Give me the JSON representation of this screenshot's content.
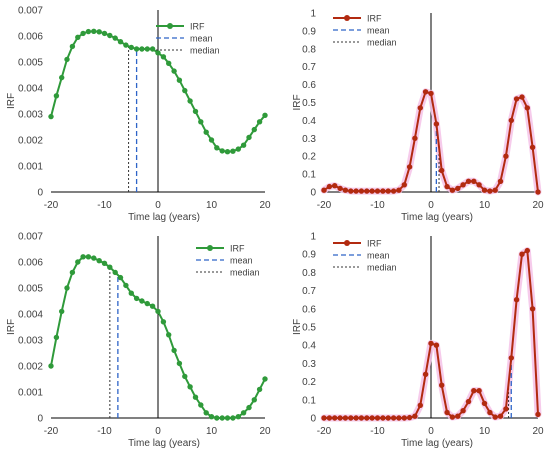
{
  "colors": {
    "green_series": "#2f9a3a",
    "red_series": "#b22a10",
    "red_glow": "#f4c2e8",
    "mean_line": "#2e64c8",
    "median_line": "#333333",
    "axis": "#000000",
    "tick_text": "#404040"
  },
  "chart_data": [
    {
      "type": "line",
      "panel": "top-left",
      "title": "",
      "xlabel": "Time lag (years)",
      "ylabel": "IRF",
      "xlim": [
        -20,
        20
      ],
      "ylim": [
        0,
        0.007
      ],
      "xticks": [
        "-20",
        "-10",
        "0",
        "10",
        "20"
      ],
      "yticks": [
        "0",
        "0.001",
        "0.002",
        "0.003",
        "0.004",
        "0.005",
        "0.006",
        "0.007"
      ],
      "legend": {
        "placement": "top-right",
        "labels": [
          "IRF",
          "mean",
          "median"
        ]
      },
      "series": [
        {
          "name": "IRF",
          "x": [
            -20,
            -19,
            -18,
            -17,
            -16,
            -15,
            -14,
            -13,
            -12,
            -11,
            -10,
            -9,
            -8,
            -7,
            -6,
            -5,
            -4,
            -3,
            -2,
            -1,
            0,
            1,
            2,
            3,
            4,
            5,
            6,
            7,
            8,
            9,
            10,
            11,
            12,
            13,
            14,
            15,
            16,
            17,
            18,
            19,
            20
          ],
          "y": [
            0.0029,
            0.0037,
            0.0044,
            0.0051,
            0.0056,
            0.00595,
            0.0061,
            0.00617,
            0.00618,
            0.00616,
            0.0061,
            0.00602,
            0.00592,
            0.00578,
            0.00565,
            0.00556,
            0.0055,
            0.0055,
            0.0055,
            0.0055,
            0.00535,
            0.0052,
            0.00495,
            0.00465,
            0.0043,
            0.0039,
            0.0035,
            0.0031,
            0.0027,
            0.0023,
            0.002,
            0.0017,
            0.00158,
            0.00155,
            0.00157,
            0.00165,
            0.0018,
            0.0021,
            0.0024,
            0.0027,
            0.00295
          ]
        }
      ],
      "mean_x": -4,
      "median_x": -5.5
    },
    {
      "type": "line",
      "panel": "top-right",
      "title": "",
      "xlabel": "Time lag (years)",
      "ylabel": "IRF",
      "xlim": [
        -20,
        20
      ],
      "ylim": [
        0,
        1
      ],
      "xticks": [
        "-20",
        "-10",
        "0",
        "10",
        "20"
      ],
      "yticks": [
        "0",
        "0.1",
        "0.2",
        "0.3",
        "0.4",
        "0.5",
        "0.6",
        "0.7",
        "0.8",
        "0.9",
        "1"
      ],
      "legend": {
        "placement": "top-left",
        "labels": [
          "IRF",
          "mean",
          "median"
        ]
      },
      "series": [
        {
          "name": "IRF",
          "x": [
            -20,
            -19,
            -18,
            -17,
            -16,
            -15,
            -14,
            -13,
            -12,
            -11,
            -10,
            -9,
            -8,
            -7,
            -6,
            -5,
            -4,
            -3,
            -2,
            -1,
            0,
            1,
            2,
            3,
            4,
            5,
            6,
            7,
            8,
            9,
            10,
            11,
            12,
            13,
            14,
            15,
            16,
            17,
            18,
            19,
            20
          ],
          "y": [
            0.01,
            0.03,
            0.035,
            0.02,
            0.01,
            0.005,
            0.005,
            0.005,
            0.005,
            0.005,
            0.005,
            0.005,
            0.005,
            0.005,
            0.01,
            0.04,
            0.14,
            0.3,
            0.47,
            0.56,
            0.55,
            0.38,
            0.12,
            0.03,
            0.01,
            0.02,
            0.04,
            0.06,
            0.06,
            0.04,
            0.01,
            0.005,
            0.01,
            0.06,
            0.2,
            0.4,
            0.52,
            0.53,
            0.47,
            0.25,
            0.0
          ]
        }
      ],
      "mean_x": 1,
      "median_x": 1.5
    },
    {
      "type": "line",
      "panel": "bottom-left",
      "title": "",
      "xlabel": "Time lag (years)",
      "ylabel": "IRF",
      "xlim": [
        -20,
        20
      ],
      "ylim": [
        0,
        0.007
      ],
      "xticks": [
        "-20",
        "-10",
        "0",
        "10",
        "20"
      ],
      "yticks": [
        "0",
        "0.001",
        "0.002",
        "0.003",
        "0.004",
        "0.005",
        "0.006",
        "0.007"
      ],
      "legend": {
        "placement": "top-right",
        "labels": [
          "IRF",
          "mean",
          "median"
        ]
      },
      "series": [
        {
          "name": "IRF",
          "x": [
            -20,
            -19,
            -18,
            -17,
            -16,
            -15,
            -14,
            -13,
            -12,
            -11,
            -10,
            -9,
            -8,
            -7,
            -6,
            -5,
            -4,
            -3,
            -2,
            -1,
            0,
            1,
            2,
            3,
            4,
            5,
            6,
            7,
            8,
            9,
            10,
            11,
            12,
            13,
            14,
            15,
            16,
            17,
            18,
            19,
            20
          ],
          "y": [
            0.002,
            0.0031,
            0.0041,
            0.005,
            0.0056,
            0.006,
            0.0062,
            0.0062,
            0.00615,
            0.00605,
            0.00595,
            0.0058,
            0.0056,
            0.0054,
            0.0051,
            0.0048,
            0.0046,
            0.0045,
            0.0044,
            0.0043,
            0.0041,
            0.0037,
            0.0032,
            0.0026,
            0.0021,
            0.0016,
            0.0012,
            0.0008,
            0.0005,
            0.0002,
            5e-05,
            0.0,
            0.0,
            0.0,
            0.0,
            5e-05,
            0.0002,
            0.0004,
            0.0007,
            0.0011,
            0.0015
          ]
        }
      ],
      "mean_x": -7.5,
      "median_x": -9
    },
    {
      "type": "line",
      "panel": "bottom-right",
      "title": "",
      "xlabel": "Time lag (years)",
      "ylabel": "IRF",
      "xlim": [
        -20,
        20
      ],
      "ylim": [
        0,
        1
      ],
      "xticks": [
        "-20",
        "-10",
        "0",
        "10",
        "20"
      ],
      "yticks": [
        "0",
        "0.1",
        "0.2",
        "0.3",
        "0.4",
        "0.5",
        "0.6",
        "0.7",
        "0.8",
        "0.9",
        "1"
      ],
      "legend": {
        "placement": "top-left",
        "labels": [
          "IRF",
          "mean",
          "median"
        ]
      },
      "series": [
        {
          "name": "IRF",
          "x": [
            -20,
            -19,
            -18,
            -17,
            -16,
            -15,
            -14,
            -13,
            -12,
            -11,
            -10,
            -9,
            -8,
            -7,
            -6,
            -5,
            -4,
            -3,
            -2,
            -1,
            0,
            1,
            2,
            3,
            4,
            5,
            6,
            7,
            8,
            9,
            10,
            11,
            12,
            13,
            14,
            15,
            16,
            17,
            18,
            19,
            20
          ],
          "y": [
            0,
            0,
            0,
            0,
            0,
            0,
            0,
            0,
            0,
            0,
            0,
            0,
            0,
            0,
            0,
            0,
            0.002,
            0.01,
            0.07,
            0.24,
            0.41,
            0.4,
            0.18,
            0.03,
            0.005,
            0.01,
            0.04,
            0.09,
            0.15,
            0.15,
            0.08,
            0.03,
            0.005,
            0.01,
            0.05,
            0.33,
            0.65,
            0.9,
            0.92,
            0.6,
            0.02
          ]
        }
      ],
      "mean_x": 15,
      "median_x": 14.5
    }
  ]
}
